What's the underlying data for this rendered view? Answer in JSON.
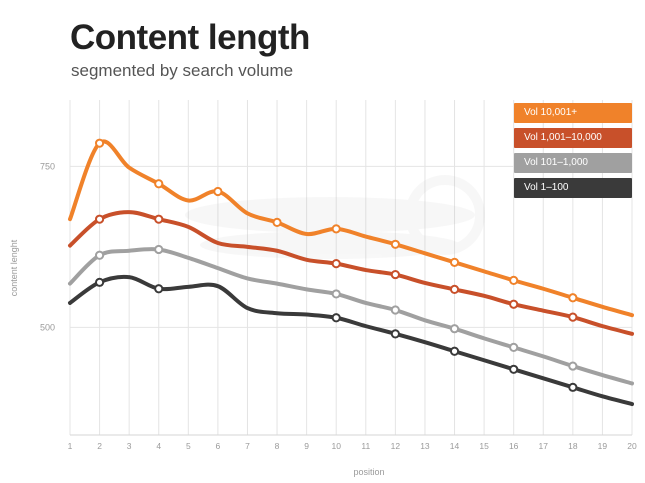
{
  "chart_data": {
    "type": "line",
    "title": "Content length",
    "subtitle": "segmented by search volume",
    "xlabel": "position",
    "ylabel": "content lenght",
    "x": [
      1,
      2,
      3,
      4,
      5,
      6,
      7,
      8,
      9,
      10,
      11,
      12,
      13,
      14,
      15,
      16,
      17,
      18,
      19,
      20
    ],
    "x_ticks": [
      "1",
      "2",
      "3",
      "4",
      "5",
      "6",
      "7",
      "8",
      "9",
      "10",
      "11",
      "12",
      "13",
      "14",
      "15",
      "16",
      "17",
      "18",
      "19",
      "20"
    ],
    "y_ticks": [
      500,
      750
    ],
    "ylim": [
      333,
      853
    ],
    "grid": true,
    "legend_position": "top-right",
    "series": [
      {
        "name": "Vol 10,001+",
        "color": "#F0822A",
        "marker_x": [
          2,
          4,
          6,
          8,
          10,
          12,
          14,
          16,
          18
        ],
        "values": [
          668,
          786,
          748,
          723,
          697,
          711,
          677,
          663,
          645,
          653,
          641,
          629,
          615,
          601,
          587,
          573,
          560,
          546,
          532,
          519
        ]
      },
      {
        "name": "Vol 1,001–10,000",
        "color": "#C8502A",
        "marker_x": [
          2,
          4,
          10,
          12,
          14,
          16,
          18
        ],
        "values": [
          627,
          668,
          679,
          668,
          656,
          631,
          625,
          619,
          605,
          599,
          589,
          582,
          569,
          559,
          549,
          536,
          526,
          516,
          502,
          490
        ]
      },
      {
        "name": "Vol 101–1,000",
        "color": "#A0A0A0",
        "marker_x": [
          2,
          4,
          10,
          12,
          14,
          16,
          18
        ],
        "values": [
          568,
          612,
          619,
          621,
          608,
          592,
          576,
          568,
          559,
          552,
          538,
          527,
          511,
          498,
          483,
          469,
          455,
          440,
          426,
          413
        ]
      },
      {
        "name": "Vol 1–100",
        "color": "#3A3A3A",
        "marker_x": [
          2,
          4,
          10,
          12,
          14,
          16,
          18
        ],
        "values": [
          538,
          570,
          578,
          560,
          563,
          564,
          530,
          522,
          520,
          515,
          502,
          490,
          477,
          463,
          449,
          435,
          421,
          407,
          393,
          381
        ]
      }
    ]
  }
}
